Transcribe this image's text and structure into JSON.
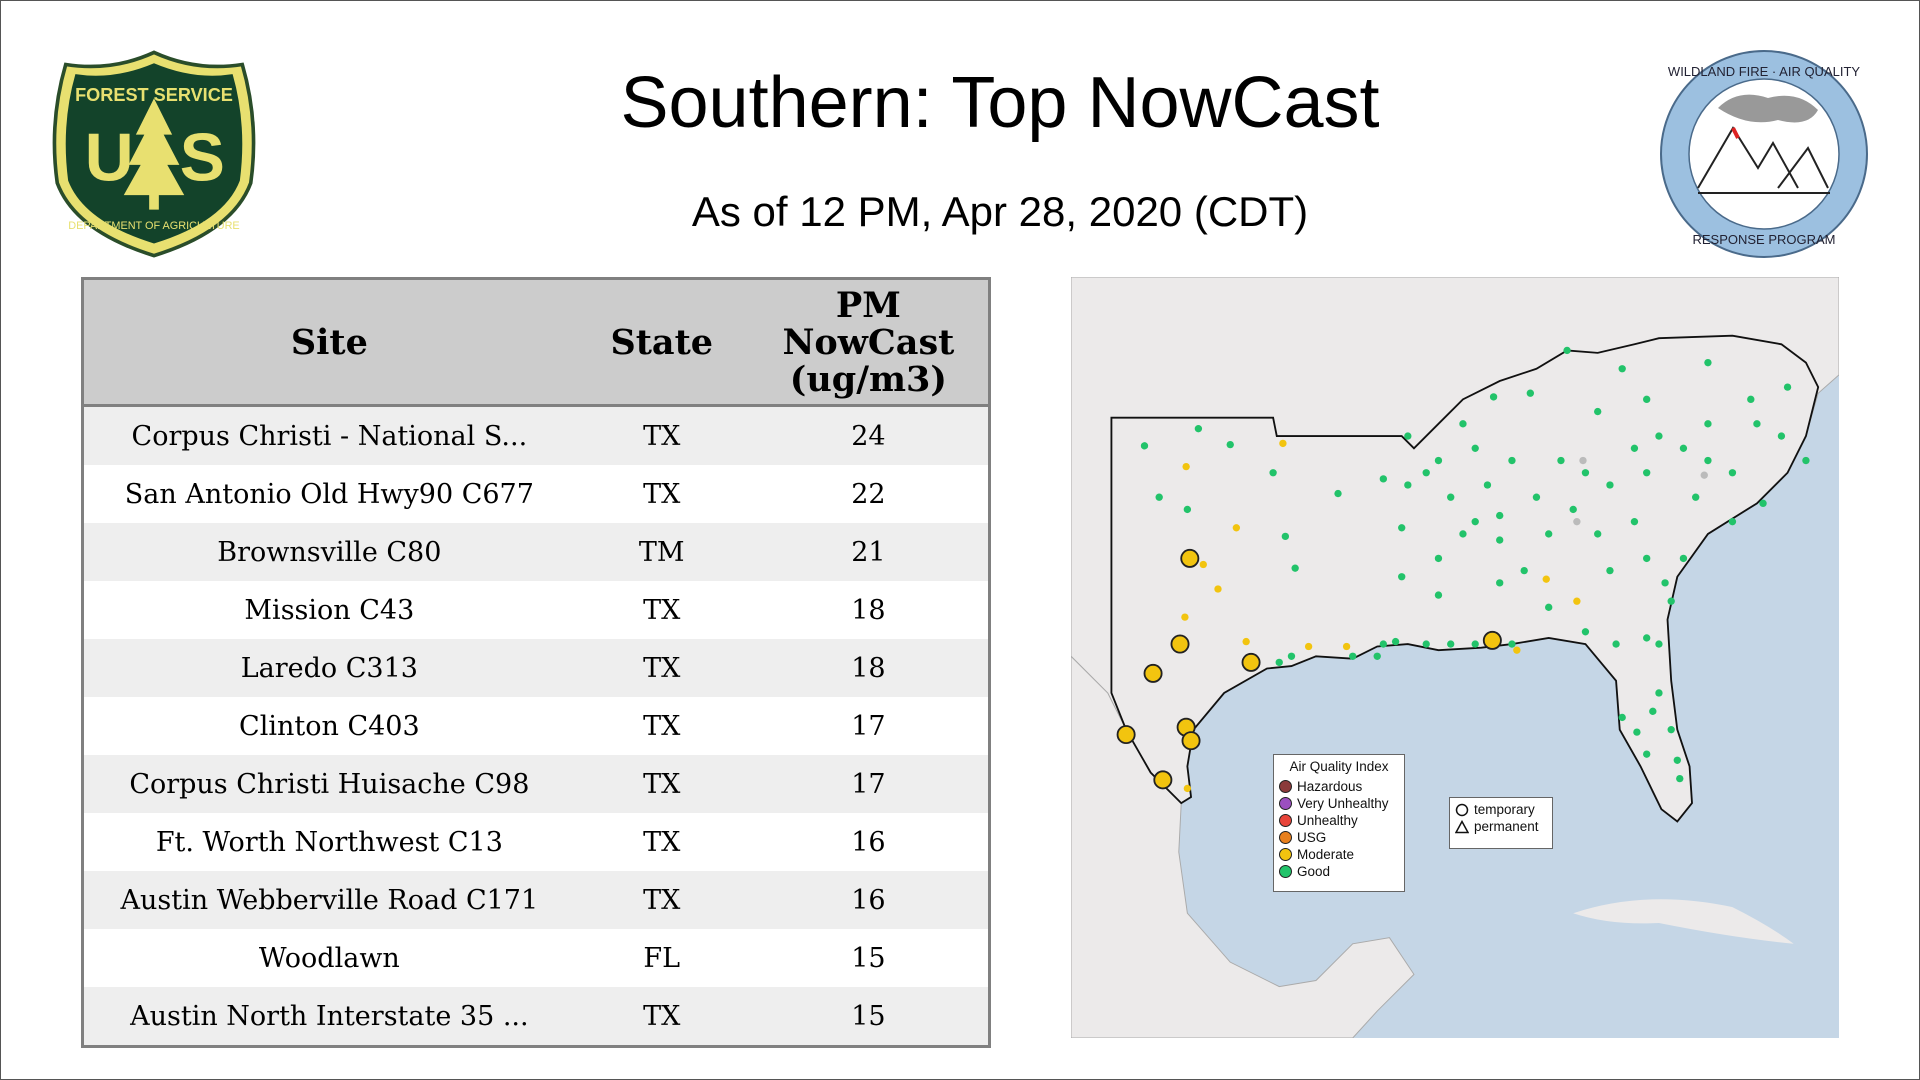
{
  "header": {
    "title": "Southern: Top NowCast",
    "subtitle": "As of 12 PM, Apr 28, 2020 (CDT)"
  },
  "logos": {
    "left": "FOREST SERVICE U S DEPARTMENT OF AGRICULTURE",
    "right": "WILDLAND FIRE · AIR QUALITY · RESPONSE PROGRAM"
  },
  "table": {
    "headers": [
      "Site",
      "State",
      "PM NowCast (ug/m3)"
    ],
    "rows": [
      [
        "Corpus Christi - National S...",
        "TX",
        "24"
      ],
      [
        "San Antonio Old Hwy90 C677",
        "TX",
        "22"
      ],
      [
        "Brownsville C80",
        "TM",
        "21"
      ],
      [
        "Mission C43",
        "TX",
        "18"
      ],
      [
        "Laredo C313",
        "TX",
        "18"
      ],
      [
        "Clinton C403",
        "TX",
        "17"
      ],
      [
        "Corpus Christi Huisache C98",
        "TX",
        "17"
      ],
      [
        "Ft. Worth Northwest C13",
        "TX",
        "16"
      ],
      [
        "Austin Webberville Road C171",
        "TX",
        "16"
      ],
      [
        "Woodlawn",
        "FL",
        "15"
      ],
      [
        "Austin North Interstate 35 ...",
        "TX",
        "15"
      ]
    ]
  },
  "map": {
    "legend_title": "Air Quality Index",
    "categories": [
      {
        "label": "Hazardous",
        "color": "#8b3a3a"
      },
      {
        "label": "Very Unhealthy",
        "color": "#9b4fc0"
      },
      {
        "label": "Unhealthy",
        "color": "#e8443a"
      },
      {
        "label": "USG",
        "color": "#e8801e"
      },
      {
        "label": "Moderate",
        "color": "#f2c40f"
      },
      {
        "label": "Good",
        "color": "#22c36a"
      }
    ],
    "monitor_types": [
      {
        "label": "temporary",
        "shape": "circle"
      },
      {
        "label": "permanent",
        "shape": "triangle"
      }
    ],
    "colors": {
      "water": "#c5d6e6",
      "land": "#eceaea",
      "no_data": "#bbbbbb"
    }
  }
}
